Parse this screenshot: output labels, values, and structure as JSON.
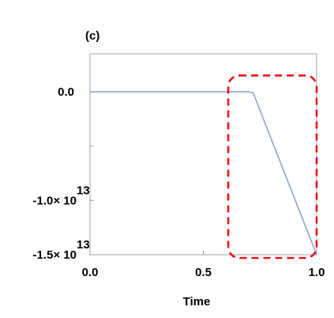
{
  "panel_label": "(c)",
  "colors": {
    "line": "#8da4cc",
    "axis": "#a0a0a0",
    "highlight_box": "#e8141c"
  },
  "chart_data": {
    "type": "line",
    "title": "",
    "xlabel": "Time",
    "ylabel": "",
    "xlim": [
      0.0,
      1.0
    ],
    "ylim": [
      -15000000000000,
      3500000000000
    ],
    "x_ticks": [
      {
        "value": 0.0,
        "label": "0.0"
      },
      {
        "value": 0.5,
        "label": "0.5"
      },
      {
        "value": 1.0,
        "label": "1.0"
      }
    ],
    "y_ticks": [
      {
        "value": 0,
        "label": "0.0",
        "base": "",
        "exp": ""
      },
      {
        "value": -10000000000000,
        "label": "-1.0",
        "base": "× 10",
        "exp": "13"
      },
      {
        "value": -15000000000000,
        "label": "-1.5",
        "base": "× 10",
        "exp": "13"
      }
    ],
    "y_minor_ticks": [
      -5000000000000
    ],
    "series": [
      {
        "x": [
          0.0,
          0.05,
          0.1,
          0.15,
          0.2,
          0.25,
          0.3,
          0.35,
          0.4,
          0.45,
          0.5,
          0.55,
          0.6,
          0.65,
          0.7,
          0.72,
          1.0
        ],
        "values": [
          0,
          0,
          0,
          0,
          0,
          0,
          0,
          0,
          0,
          0,
          0,
          0,
          0,
          0,
          0,
          -100000000000,
          -15000000000000
        ]
      }
    ],
    "annotations": [
      {
        "type": "dashed-box",
        "x_range": [
          0.61,
          1.0
        ],
        "y_range": [
          -15300000000000,
          1500000000000
        ]
      }
    ],
    "grid": false,
    "legend": "none"
  }
}
